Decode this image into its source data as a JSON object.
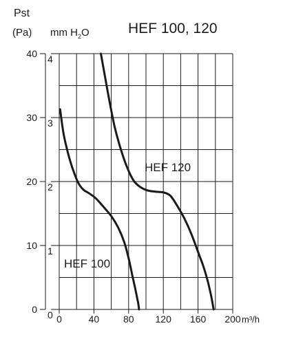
{
  "chart_data": {
    "type": "line",
    "title": "HEF 100, 120",
    "y_left_label_top": "Pst",
    "y_left_label_unit": "(Pa)",
    "y_right_label_main": "mm H",
    "y_right_label_sub": "2",
    "y_right_label_end": "O",
    "x_unit": "m³/h",
    "xlim": [
      0,
      200
    ],
    "ylim_pa": [
      0,
      40
    ],
    "ylim_mmh2o": [
      0,
      4
    ],
    "x_ticks": [
      "0",
      "40",
      "80",
      "120",
      "160",
      "200"
    ],
    "y_ticks_pa": [
      "0",
      "10",
      "20",
      "30",
      "40"
    ],
    "y_ticks_mmh2o": [
      "0",
      "1",
      "2",
      "3",
      "4"
    ],
    "grid": true,
    "series": [
      {
        "name": "HEF 100",
        "x_label": "HEF 100",
        "points": [
          [
            1,
            31.3
          ],
          [
            5,
            27.5
          ],
          [
            10,
            24.5
          ],
          [
            16,
            21.8
          ],
          [
            22,
            19.8
          ],
          [
            28,
            18.7
          ],
          [
            34,
            18.2
          ],
          [
            42,
            17.4
          ],
          [
            50,
            16.2
          ],
          [
            60,
            14.6
          ],
          [
            68,
            12.8
          ],
          [
            75,
            10.5
          ],
          [
            80,
            8.0
          ],
          [
            84,
            5.5
          ],
          [
            88,
            3.0
          ],
          [
            91,
            1.0
          ],
          [
            92,
            0
          ]
        ]
      },
      {
        "name": "HEF 120",
        "x_label": "HEF 120",
        "points": [
          [
            48,
            40.0
          ],
          [
            52,
            37.0
          ],
          [
            58,
            32.5
          ],
          [
            64,
            28.5
          ],
          [
            70,
            25.5
          ],
          [
            78,
            22.3
          ],
          [
            86,
            20.1
          ],
          [
            94,
            19.1
          ],
          [
            102,
            18.6
          ],
          [
            112,
            18.4
          ],
          [
            120,
            18.3
          ],
          [
            128,
            17.8
          ],
          [
            136,
            16.2
          ],
          [
            144,
            14.3
          ],
          [
            152,
            11.9
          ],
          [
            160,
            9.0
          ],
          [
            166,
            6.8
          ],
          [
            171,
            4.5
          ],
          [
            175,
            2.2
          ],
          [
            178,
            0
          ]
        ]
      }
    ]
  }
}
